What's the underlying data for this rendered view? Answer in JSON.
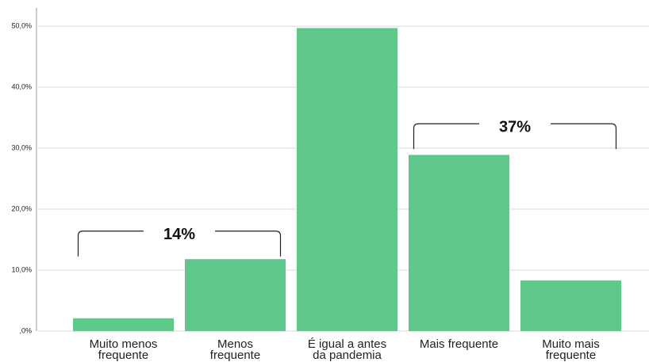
{
  "chart_data": {
    "type": "bar",
    "categories": [
      "Muito menos\nfrequente",
      "Menos\nfrequente",
      "É igual a antes\nda pandemia",
      "Mais frequente",
      "Muito mais\nfrequente"
    ],
    "values": [
      2.1,
      11.8,
      49.7,
      28.9,
      8.3
    ],
    "color": "#5ec98a",
    "ylim": [
      0,
      53
    ],
    "yticks": [
      {
        "value": 0,
        "label": ",0%"
      },
      {
        "value": 10,
        "label": "10,0%"
      },
      {
        "value": 20,
        "label": "20,0%"
      },
      {
        "value": 30,
        "label": "30,0%"
      },
      {
        "value": 40,
        "label": "40,0%"
      },
      {
        "value": 50,
        "label": "50,0%"
      }
    ],
    "grid": true,
    "annotations": [
      {
        "text": "14%"
      },
      {
        "text": "37%"
      }
    ]
  }
}
